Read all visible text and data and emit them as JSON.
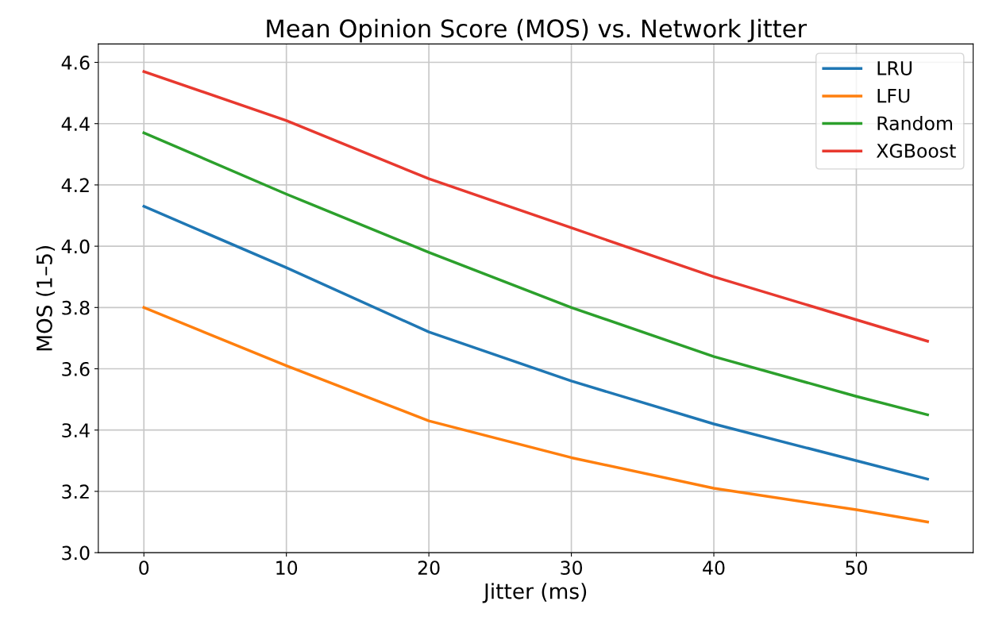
{
  "chart_data": {
    "type": "line",
    "title": "Mean Opinion Score (MOS) vs. Network Jitter",
    "xlabel": "Jitter (ms)",
    "ylabel": "MOS (1–5)",
    "x": [
      0,
      10,
      20,
      30,
      40,
      50,
      55
    ],
    "series": [
      {
        "name": "LRU",
        "color": "#1f77b4",
        "values": [
          4.13,
          3.93,
          3.72,
          3.56,
          3.42,
          3.3,
          3.24
        ]
      },
      {
        "name": "LFU",
        "color": "#ff7f0e",
        "values": [
          3.8,
          3.61,
          3.43,
          3.31,
          3.21,
          3.14,
          3.1
        ]
      },
      {
        "name": "Random",
        "color": "#2ca02c",
        "values": [
          4.37,
          4.17,
          3.98,
          3.8,
          3.64,
          3.51,
          3.45
        ]
      },
      {
        "name": "XGBoost",
        "color": "#e8392f",
        "values": [
          4.57,
          4.41,
          4.22,
          4.06,
          3.9,
          3.76,
          3.69
        ]
      }
    ],
    "xlim": [
      -3.2,
      58.2
    ],
    "ylim": [
      3.0,
      4.66
    ],
    "xticks": [
      0,
      10,
      20,
      30,
      40,
      50
    ],
    "yticks": [
      {
        "value": 3,
        "label": "3.0"
      },
      3.2,
      3.4,
      3.6,
      3.8,
      {
        "value": 4,
        "label": "4.0"
      },
      4.2,
      4.4,
      4.6
    ],
    "grid": true,
    "legend": "top right",
    "marker": "none",
    "line_style": "solid"
  }
}
